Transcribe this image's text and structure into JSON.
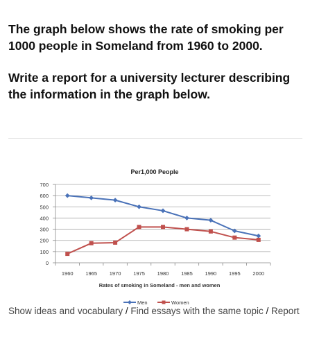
{
  "prompt": {
    "line1": "The graph below shows the rate of smoking per 1000 people in Someland from 1960 to 2000.",
    "line2": "Write a report for a university lecturer describing the information in the graph below."
  },
  "links": {
    "ideas": "Show ideas and vocabulary",
    "separator": "/",
    "find": "Find essays with the same topic",
    "report": "Report"
  },
  "chart_data": {
    "type": "line",
    "title": "Per1,000 People",
    "xlabel": "Rates of smoking in Someland - men and women",
    "ylabel": "",
    "x": [
      "1960",
      "1965",
      "1970",
      "1975",
      "1980",
      "1985",
      "1990",
      "1995",
      "2000"
    ],
    "ylim": [
      0,
      700
    ],
    "yticks": [
      0,
      100,
      200,
      300,
      400,
      500,
      600,
      700
    ],
    "grid": true,
    "legend": "bottom",
    "series": [
      {
        "name": "Men",
        "color": "#4a72b8",
        "marker": "diamond",
        "values": [
          600,
          580,
          560,
          500,
          465,
          400,
          380,
          285,
          240
        ]
      },
      {
        "name": "Women",
        "color": "#c0504d",
        "marker": "square",
        "values": [
          80,
          175,
          180,
          320,
          320,
          300,
          280,
          225,
          205
        ]
      }
    ]
  }
}
